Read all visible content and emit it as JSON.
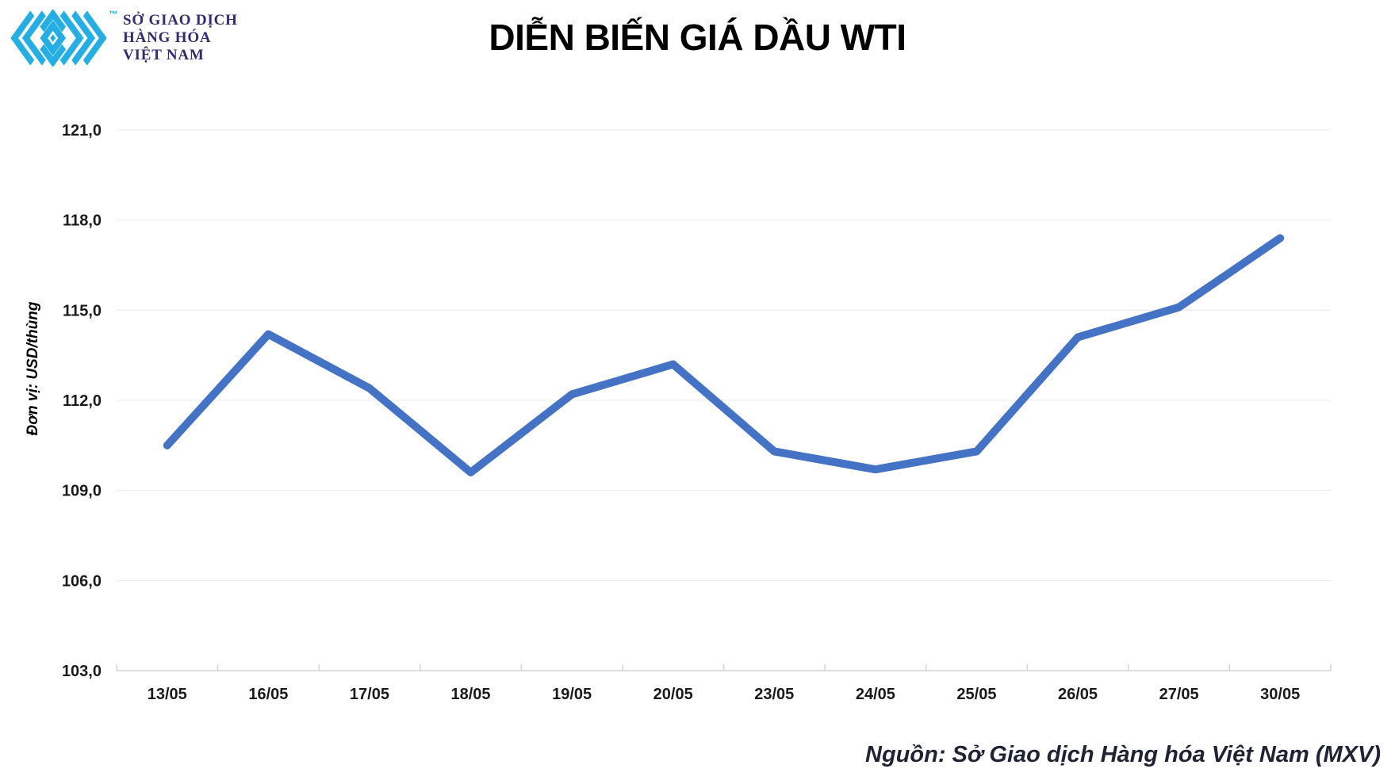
{
  "header": {
    "logo": {
      "tm": "™",
      "org_lines": [
        "SỞ GIAO DỊCH",
        "HÀNG HÓA",
        "VIỆT NAM"
      ]
    },
    "title": "DIỄN BIẾN GIÁ DẦU WTI"
  },
  "footer": {
    "source": "Nguồn: Sở Giao dịch Hàng hóa Việt Nam (MXV)"
  },
  "brand": {
    "cyan": "#24AEE4",
    "navy": "#322C70"
  },
  "chart_data": {
    "type": "line",
    "title": "DIỄN BIẾN GIÁ DẦU WTI",
    "xlabel": "",
    "ylabel": "Đơn vị: USD/thùng",
    "categories": [
      "13/05",
      "16/05",
      "17/05",
      "18/05",
      "19/05",
      "20/05",
      "23/05",
      "24/05",
      "25/05",
      "26/05",
      "27/05",
      "30/05"
    ],
    "values": [
      110.5,
      114.2,
      112.4,
      109.6,
      112.2,
      113.2,
      110.3,
      109.7,
      110.3,
      114.1,
      115.1,
      117.4
    ],
    "ylim": [
      103,
      121
    ],
    "ytick_step": 3,
    "ytick_labels": [
      "103,0",
      "106,0",
      "109,0",
      "112,0",
      "115,0",
      "118,0",
      "121,0"
    ],
    "grid": true,
    "legend": "none",
    "line_color": "#4472C4",
    "line_width": 10,
    "grid_color": "#E8E8E8",
    "axis_color": "#D4D4D4",
    "tick_label_color": "#1a1a1a"
  }
}
